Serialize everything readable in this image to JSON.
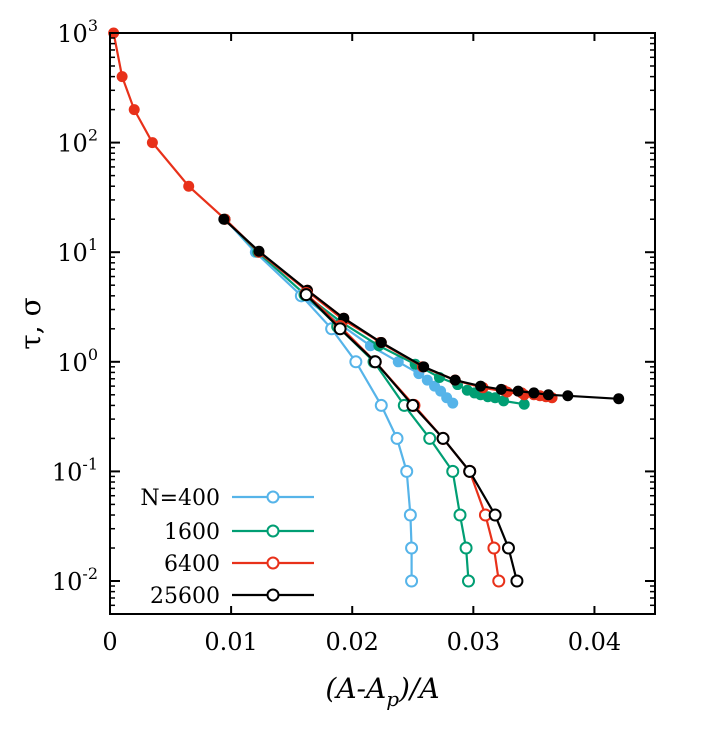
{
  "chart_data": {
    "type": "line",
    "y_scale": "log",
    "xlabel": "(A-A_p)/A",
    "ylabel": "τ, σ",
    "xlim": [
      0,
      0.045
    ],
    "ylim": [
      0.005,
      1000
    ],
    "x_ticks": [
      0,
      0.01,
      0.02,
      0.03,
      0.04
    ],
    "x_tick_labels": [
      "0",
      "0.01",
      "0.02",
      "0.03",
      "0.04"
    ],
    "y_ticks": [
      0.01,
      0.1,
      1,
      10,
      100,
      1000
    ],
    "y_tick_labels": [
      {
        "base": "10",
        "exp": "-2"
      },
      {
        "base": "10",
        "exp": "-1"
      },
      {
        "base": "10",
        "exp": "0"
      },
      {
        "base": "10",
        "exp": "1"
      },
      {
        "base": "10",
        "exp": "2"
      },
      {
        "base": "10",
        "exp": "3"
      }
    ],
    "grid": false,
    "legend_position": "bottom-left",
    "sigma_series": [
      {
        "color": "#e8311a",
        "points": [
          [
            0.0003,
            1000
          ],
          [
            0.001,
            400
          ],
          [
            0.002,
            200
          ],
          [
            0.0035,
            100
          ],
          [
            0.0065,
            40
          ],
          [
            0.0095,
            20
          ],
          [
            0.0123,
            10
          ],
          [
            0.0163,
            4.5
          ],
          [
            0.0193,
            2.5
          ],
          [
            0.0223,
            1.5
          ],
          [
            0.0258,
            0.9
          ],
          [
            0.0285,
            0.68
          ],
          [
            0.0308,
            0.58
          ],
          [
            0.0325,
            0.55
          ],
          [
            0.034,
            0.52
          ],
          [
            0.035,
            0.5
          ],
          [
            0.036,
            0.48
          ]
        ]
      },
      {
        "color": "#56b4e9",
        "points": [
          [
            0.0095,
            20
          ],
          [
            0.012,
            10
          ],
          [
            0.0158,
            4
          ],
          [
            0.019,
            2.2
          ],
          [
            0.0215,
            1.4
          ],
          [
            0.0238,
            1.0
          ],
          [
            0.0255,
            0.78
          ],
          [
            0.0262,
            0.68
          ],
          [
            0.0268,
            0.6
          ],
          [
            0.0273,
            0.54
          ],
          [
            0.0278,
            0.47
          ],
          [
            0.0283,
            0.42
          ]
        ]
      },
      {
        "color": "#009e73",
        "points": [
          [
            0.0095,
            20
          ],
          [
            0.0122,
            10
          ],
          [
            0.016,
            4.2
          ],
          [
            0.0191,
            2.3
          ],
          [
            0.0222,
            1.4
          ],
          [
            0.0252,
            0.95
          ],
          [
            0.0272,
            0.72
          ],
          [
            0.0287,
            0.62
          ],
          [
            0.0295,
            0.55
          ],
          [
            0.0301,
            0.52
          ],
          [
            0.0306,
            0.5
          ],
          [
            0.0312,
            0.48
          ],
          [
            0.0318,
            0.47
          ],
          [
            0.0325,
            0.44
          ],
          [
            0.0342,
            0.41
          ]
        ]
      },
      {
        "color": "#e8311a",
        "points": [
          [
            0.0095,
            20
          ],
          [
            0.0123,
            10
          ],
          [
            0.0163,
            4.4
          ],
          [
            0.0193,
            2.4
          ],
          [
            0.0224,
            1.5
          ],
          [
            0.0258,
            0.9
          ],
          [
            0.0285,
            0.68
          ],
          [
            0.0308,
            0.58
          ],
          [
            0.0328,
            0.53
          ],
          [
            0.0342,
            0.5
          ],
          [
            0.0355,
            0.49
          ],
          [
            0.0365,
            0.47
          ]
        ]
      },
      {
        "color": "#000000",
        "points": [
          [
            0.0094,
            20
          ],
          [
            0.0123,
            10.2
          ],
          [
            0.0163,
            4.5
          ],
          [
            0.0193,
            2.5
          ],
          [
            0.0224,
            1.5
          ],
          [
            0.0259,
            0.9
          ],
          [
            0.0285,
            0.68
          ],
          [
            0.0306,
            0.6
          ],
          [
            0.0323,
            0.56
          ],
          [
            0.0337,
            0.54
          ],
          [
            0.035,
            0.52
          ],
          [
            0.0362,
            0.5
          ],
          [
            0.0378,
            0.49
          ],
          [
            0.042,
            0.46
          ]
        ]
      }
    ],
    "series": [
      {
        "name": "N=400",
        "color": "#56b4e9",
        "points": [
          [
            0.0158,
            4.0
          ],
          [
            0.0183,
            2.0
          ],
          [
            0.0203,
            1.0
          ],
          [
            0.0224,
            0.4
          ],
          [
            0.0237,
            0.2
          ],
          [
            0.0245,
            0.1
          ],
          [
            0.0248,
            0.04
          ],
          [
            0.0249,
            0.02
          ],
          [
            0.0249,
            0.01
          ]
        ]
      },
      {
        "name": "1600",
        "color": "#009e73",
        "points": [
          [
            0.0161,
            4.1
          ],
          [
            0.0188,
            2.1
          ],
          [
            0.0218,
            1.0
          ],
          [
            0.0243,
            0.4
          ],
          [
            0.0264,
            0.2
          ],
          [
            0.0283,
            0.1
          ],
          [
            0.0289,
            0.04
          ],
          [
            0.0294,
            0.02
          ],
          [
            0.0296,
            0.01
          ]
        ]
      },
      {
        "name": "6400",
        "color": "#e8311a",
        "points": [
          [
            0.0162,
            4.2
          ],
          [
            0.019,
            2.1
          ],
          [
            0.0219,
            1.0
          ],
          [
            0.0251,
            0.4
          ],
          [
            0.0275,
            0.2
          ],
          [
            0.0297,
            0.1
          ],
          [
            0.031,
            0.04
          ],
          [
            0.0317,
            0.02
          ],
          [
            0.0321,
            0.01
          ]
        ]
      },
      {
        "name": "25600",
        "color": "#000000",
        "points": [
          [
            0.0162,
            4.1
          ],
          [
            0.019,
            2.0
          ],
          [
            0.0219,
            1.0
          ],
          [
            0.025,
            0.4
          ],
          [
            0.0275,
            0.2
          ],
          [
            0.0297,
            0.1
          ],
          [
            0.0318,
            0.04
          ],
          [
            0.0329,
            0.02
          ],
          [
            0.0336,
            0.01
          ]
        ]
      }
    ]
  }
}
